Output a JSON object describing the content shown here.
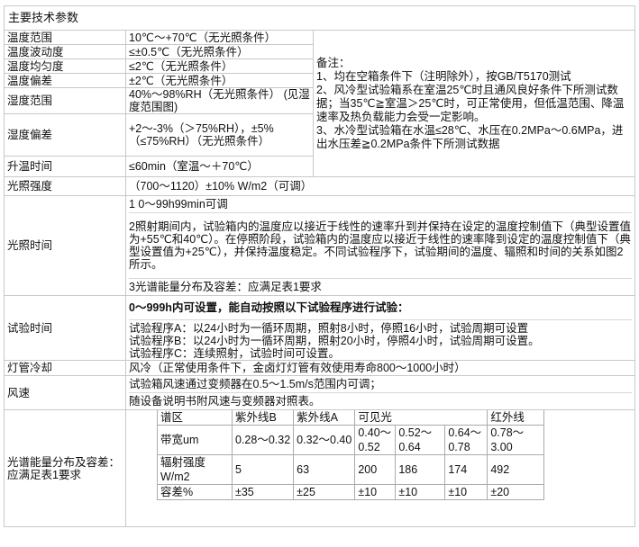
{
  "title": "主要技术参数",
  "notes": {
    "heading": "备注：",
    "items": [
      "1、均在空箱条件下（注明除外），按GB/T5170测试",
      "2、风冷型试验箱系在室温25℃时且通风良好条件下所测试数据；当35℃≧室温＞25℃时，可正常使用，但低温范围、降温速率及热负载能力会受一定影响。",
      "3、水冷型试验箱在水温≤28℃、水压在0.2MPa～0.6MPa，进出水压差≧0.2MPa条件下所测试数据"
    ]
  },
  "rows": [
    {
      "label": "温度范围",
      "value": "10℃～+70℃（无光照条件）"
    },
    {
      "label": "温度波动度",
      "value": "≤±0.5℃（无光照条件）"
    },
    {
      "label": "温度均匀度",
      "value": "≤2℃（无光照条件）"
    },
    {
      "label": "温度偏差",
      "value": "±2℃（无光照条件）"
    },
    {
      "label": "湿度范围",
      "value": "40%～98%RH（无光照条件） (见湿度范围图)"
    },
    {
      "label": "湿度偏差",
      "value": "+2～-3%（＞75%RH），±5%（≤75%RH）（无光照条件）"
    },
    {
      "label": "升温时间",
      "value": "≤60min（室温～＋70℃）"
    },
    {
      "label": "光照强度",
      "value": "（700～1120）±10% W/m2（可调）"
    }
  ],
  "light_time": {
    "label": "光照时间",
    "items": [
      "1  0～99h99min可调",
      "2照射期间内，试验箱内的温度应以接近于线性的速率升到并保持在设定的温度控制值下（典型设置值为+55℃和40℃）。在停照阶段，试验箱内的温度应以接近于线性的速率降到设定的温度控制值下（典型设置值为+25℃），并保持温度稳定。不同试验程序下，试验期间的温度、辐照和时间的关系如图2所示。",
      "3光谱能量分布及容差：应满足表1要求"
    ]
  },
  "test_time": {
    "label": "试验时间",
    "headline": "0～999h内可设置，能自动按照以下试验程序进行试验：",
    "programs": [
      "试验程序A：以24小时为一循环周期，照射8小时，停照16小时，试验周期可设置",
      "试验程序B：以24小时为一循环周期，照射20小时，停照4小时，试验周期可设置。",
      "试验程序C：连续照射，试验时间可设置。"
    ]
  },
  "lamp_cooling": {
    "label": "灯管冷却",
    "value": "风冷（正常使用条件下，金卤灯灯管有效使用寿命800～1000小时）"
  },
  "wind": {
    "label": "风速",
    "items": [
      "试验箱风速通过变频器在0.5～1.5m/s范围内可调；",
      "随设备说明书附风速与变频器对照表。"
    ]
  },
  "spectrum": {
    "label": "光谱能量分布及容差：应满足表1要求",
    "header": [
      "谱区",
      "紫外线B",
      "紫外线A",
      "可见光",
      "",
      "",
      "红外线"
    ],
    "bandwidth": [
      "带宽um",
      "0.28～0.32",
      "0.32～0.40",
      "0.40～0.52",
      "0.52～0.64",
      "0.64～0.78",
      "0.78～3.00"
    ],
    "irradiance": [
      "辐射强度W/m2",
      "5",
      "63",
      "200",
      "186",
      "174",
      "492"
    ],
    "tolerance": [
      "容差%",
      "±35",
      "±25",
      "±10",
      "±10",
      "±10",
      "±20"
    ]
  }
}
